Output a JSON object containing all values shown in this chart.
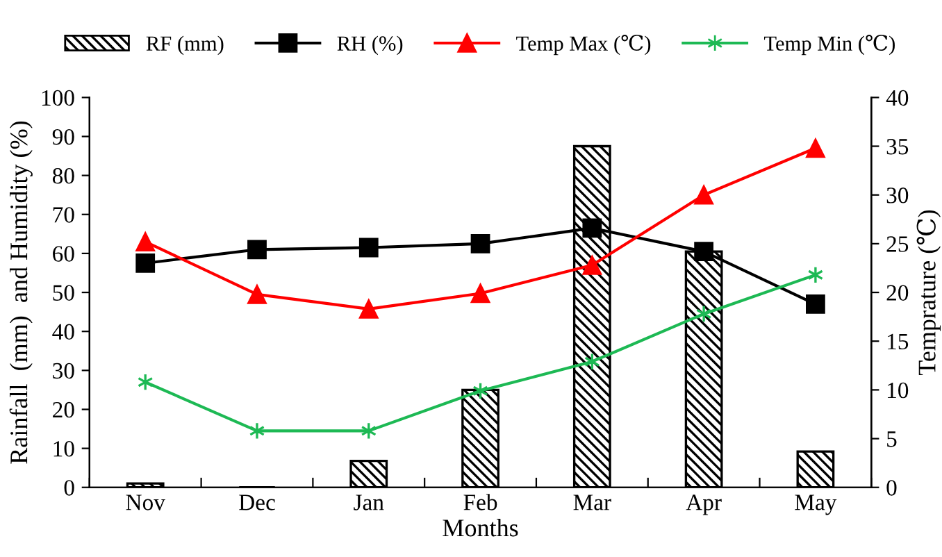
{
  "chart_data": {
    "type": "bar",
    "categories": [
      "Nov",
      "Dec",
      "Jan",
      "Feb",
      "Mar",
      "Apr",
      "May"
    ],
    "xlabel": "Months",
    "ylabel": "Rainfall  (mm)  and Humidity (%)",
    "y2label": "Temprature (℃)",
    "ylim": [
      0,
      100
    ],
    "yticks": [
      0,
      10,
      20,
      30,
      40,
      50,
      60,
      70,
      80,
      90,
      100
    ],
    "y2lim": [
      0,
      40
    ],
    "y2ticks": [
      0,
      5,
      10,
      15,
      20,
      25,
      30,
      35,
      40
    ],
    "grid": false,
    "legend": "top",
    "series": [
      {
        "name": "RF (mm)",
        "color": "#000000",
        "values": [
          1,
          0,
          6.8,
          25,
          87.5,
          60.5,
          9.2
        ]
      },
      {
        "name": "RH (%)",
        "type": "line",
        "color": "#000000",
        "marker": "square",
        "values": [
          57.5,
          61,
          61.5,
          62.5,
          66.5,
          60.5,
          47
        ]
      },
      {
        "name": "Temp Max (℃)",
        "type": "line",
        "axis": "y2",
        "color": "#ff0000",
        "marker": "triangle",
        "values": [
          25.2,
          19.8,
          18.3,
          19.9,
          22.8,
          30,
          34.8
        ]
      },
      {
        "name": "Temp Min (℃)",
        "type": "line",
        "axis": "y2",
        "color": "#1db954",
        "marker": "cross",
        "values": [
          10.8,
          5.8,
          5.8,
          9.9,
          12.9,
          17.8,
          21.8
        ]
      }
    ]
  }
}
